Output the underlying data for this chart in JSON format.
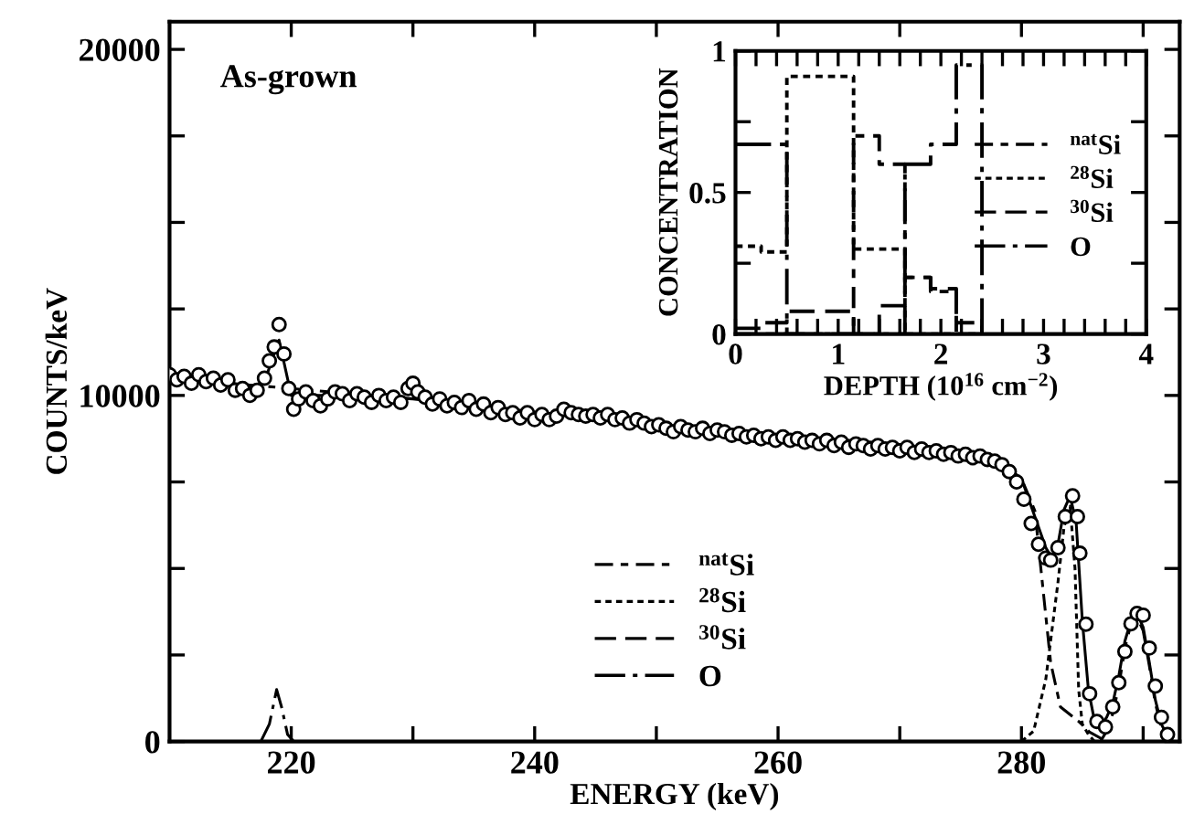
{
  "chart_data": [
    {
      "type": "line",
      "xlabel": "ENERGY (keV)",
      "ylabel": "COUNTS/keV",
      "annotations": [
        "As-grown"
      ],
      "xlim": [
        210,
        293
      ],
      "ylim": [
        0,
        20800
      ],
      "xticks": [
        220,
        {
          "value": 230,
          "label": null
        },
        240,
        {
          "value": 250,
          "label": null
        },
        260,
        {
          "value": 270,
          "label": null
        },
        280,
        {
          "value": 290,
          "label": null
        }
      ],
      "yticks": [
        0,
        {
          "value": 2500,
          "label": null
        },
        {
          "value": 5000,
          "label": null
        },
        {
          "value": 7500,
          "label": null
        },
        10000,
        {
          "value": 12500,
          "label": null
        },
        {
          "value": 15000,
          "label": null
        },
        {
          "value": 17500,
          "label": null
        },
        20000
      ],
      "grid": false,
      "legend": "bottom",
      "series": [
        {
          "type": "scatter",
          "color": "#000000",
          "marker": "circle",
          "x": [
            210,
            210.6,
            211.2,
            211.8,
            212.4,
            213,
            213.6,
            214.2,
            214.8,
            215.4,
            216,
            216.6,
            217.2,
            217.8,
            218.2,
            218.6,
            219,
            219.4,
            219.8,
            220.2,
            220.6,
            221.2,
            221.8,
            222.4,
            223,
            223.6,
            224.2,
            224.8,
            225.4,
            226,
            226.6,
            227.2,
            227.8,
            228.4,
            229,
            229.6,
            230,
            230.4,
            231,
            231.6,
            232.2,
            232.8,
            233.4,
            234,
            234.6,
            235.2,
            235.8,
            236.4,
            237,
            237.6,
            238.2,
            238.8,
            239.4,
            240,
            240.6,
            241.2,
            241.8,
            242.4,
            243,
            243.6,
            244.2,
            244.8,
            245.4,
            246,
            246.6,
            247.2,
            247.8,
            248.4,
            249,
            249.6,
            250.2,
            250.8,
            251.4,
            252,
            252.6,
            253.2,
            253.8,
            254.4,
            255,
            255.6,
            256.2,
            256.8,
            257.4,
            258,
            258.6,
            259.2,
            259.8,
            260.4,
            261,
            261.6,
            262.2,
            262.8,
            263.4,
            264,
            264.6,
            265.2,
            265.8,
            266.4,
            267,
            267.6,
            268.2,
            268.8,
            269.4,
            270,
            270.6,
            271.2,
            271.8,
            272.4,
            273,
            273.6,
            274.2,
            274.8,
            275.4,
            276,
            276.6,
            277.2,
            277.8,
            278.4,
            279,
            279.6,
            280.2,
            280.8,
            281.4,
            282,
            282.4,
            283,
            283.6,
            284.2,
            284.6,
            284.8,
            285.3,
            285.6,
            286.2,
            286.9,
            287.5,
            288,
            288.5,
            289,
            289.5,
            290,
            290.5,
            291,
            291.5,
            292
          ],
          "values": [
            10600,
            10450,
            10550,
            10350,
            10600,
            10400,
            10500,
            10300,
            10450,
            10150,
            10200,
            10000,
            10150,
            10500,
            11000,
            11400,
            12050,
            11200,
            10200,
            9600,
            9900,
            10100,
            9850,
            9700,
            9900,
            10100,
            10050,
            9850,
            10050,
            9950,
            9800,
            10000,
            9850,
            9950,
            9800,
            10200,
            10350,
            10100,
            9950,
            9750,
            9900,
            9700,
            9800,
            9650,
            9850,
            9600,
            9750,
            9500,
            9650,
            9450,
            9500,
            9350,
            9500,
            9300,
            9450,
            9300,
            9400,
            9600,
            9500,
            9450,
            9400,
            9450,
            9350,
            9450,
            9300,
            9350,
            9200,
            9300,
            9200,
            9100,
            9150,
            9050,
            8950,
            9100,
            9000,
            8950,
            9050,
            8900,
            9000,
            8950,
            8850,
            8900,
            8800,
            8850,
            8750,
            8800,
            8700,
            8800,
            8700,
            8750,
            8650,
            8700,
            8600,
            8700,
            8550,
            8650,
            8500,
            8600,
            8550,
            8450,
            8550,
            8450,
            8500,
            8400,
            8500,
            8350,
            8450,
            8350,
            8400,
            8300,
            8350,
            8250,
            8300,
            8200,
            8250,
            8150,
            8100,
            8000,
            7800,
            7500,
            7000,
            6300,
            5700,
            5300,
            5240,
            5600,
            6500,
            7100,
            6500,
            5440,
            3390,
            1380,
            580,
            420,
            1000,
            1700,
            2600,
            3400,
            3700,
            3650,
            2700,
            1600,
            700,
            200
          ]
        },
        {
          "type": "line",
          "color": "#000000",
          "line_style": "solid",
          "x": [
            210,
            217,
            218,
            219,
            220,
            225,
            230,
            240,
            250,
            260,
            270,
            276,
            278,
            280,
            281,
            282,
            282.5,
            283,
            283.5,
            284,
            284.5,
            285,
            285.5,
            286,
            286.5,
            287,
            287.5,
            288,
            288.5,
            289,
            289.5,
            290,
            290.5,
            291,
            291.5,
            292
          ],
          "values": [
            10500,
            10200,
            10600,
            11600,
            10000,
            10000,
            9900,
            9500,
            9150,
            8850,
            8580,
            8350,
            8100,
            7600,
            6600,
            5600,
            5300,
            5700,
            6700,
            7100,
            6300,
            3500,
            1500,
            600,
            450,
            700,
            1100,
            1900,
            2900,
            3500,
            3700,
            3300,
            2300,
            1200,
            500,
            150
          ]
        },
        {
          "type": "line",
          "name": "$^{nat}$Si",
          "color": "#000000",
          "line_style": "dashdot",
          "x": [
            210,
            230,
            250,
            270,
            278,
            280,
            281.1,
            282.4,
            283.2,
            284.7,
            285.6,
            287
          ],
          "values": [
            10500,
            9900,
            9150,
            8580,
            8100,
            7600,
            6670,
            2280,
            1000,
            580,
            270,
            0
          ]
        },
        {
          "type": "line",
          "name": "$^{28}$Si",
          "color": "#000000",
          "line_style": "dotted",
          "x": [
            280,
            281,
            282,
            282.5,
            283,
            283.5,
            284,
            284.4,
            284.7,
            285,
            285.5,
            286
          ],
          "values": [
            0,
            300,
            1800,
            3200,
            4600,
            6200,
            6800,
            5000,
            1500,
            500,
            200,
            0
          ]
        },
        {
          "type": "line",
          "name": "$^{30}$Si",
          "color": "#000000",
          "line_style": "dashed",
          "x": [
            286.5,
            287,
            287.5,
            288,
            288.5,
            289,
            289.5,
            290,
            290.5,
            291,
            291.5,
            292,
            292.5
          ],
          "values": [
            0,
            300,
            800,
            1600,
            2700,
            3400,
            3600,
            3200,
            2200,
            1100,
            400,
            100,
            0
          ]
        },
        {
          "type": "line",
          "name": "O",
          "color": "#000000",
          "line_style": "longdashdot",
          "x": [
            217.5,
            218.2,
            218.8,
            219.2,
            219.7,
            220.2
          ],
          "values": [
            0,
            500,
            1500,
            1000,
            200,
            0
          ]
        }
      ]
    },
    {
      "type": "step",
      "xlabel": "DEPTH (10$^{16}$ cm$^{−2}$)",
      "ylabel": "CONCENTRATION",
      "xlim": [
        0,
        4
      ],
      "ylim": [
        0,
        1
      ],
      "xticks": [
        0,
        {
          "value": 0.2,
          "label": null
        },
        {
          "value": 0.4,
          "label": null
        },
        {
          "value": 0.6,
          "label": null
        },
        {
          "value": 0.8,
          "label": null
        },
        1,
        {
          "value": 1.2,
          "label": null
        },
        {
          "value": 1.4,
          "label": null
        },
        {
          "value": 1.6,
          "label": null
        },
        {
          "value": 1.8,
          "label": null
        },
        2,
        {
          "value": 2.2,
          "label": null
        },
        {
          "value": 2.4,
          "label": null
        },
        {
          "value": 2.6,
          "label": null
        },
        {
          "value": 2.8,
          "label": null
        },
        3,
        {
          "value": 3.2,
          "label": null
        },
        {
          "value": 3.4,
          "label": null
        },
        {
          "value": 3.6,
          "label": null
        },
        {
          "value": 3.8,
          "label": null
        },
        4
      ],
      "yticks": [
        0,
        {
          "value": 0.25,
          "label": null
        },
        0.5,
        {
          "value": 0.75,
          "label": null
        },
        1
      ],
      "grid": false,
      "legend": "right",
      "series": [
        {
          "name": "$^{nat}$Si",
          "color": "#000000",
          "line_style": "dashdot",
          "x": [
            0,
            0.25,
            0.5,
            1.15,
            1.4,
            1.65,
            1.9,
            2.15,
            2.4
          ],
          "values": [
            0,
            0,
            0,
            0.7,
            0.6,
            0.2,
            0.15,
            0,
            0
          ]
        },
        {
          "name": "$^{28}$Si",
          "color": "#000000",
          "line_style": "dotted",
          "x": [
            0,
            0.25,
            0.5,
            1.15,
            1.4,
            1.65,
            1.9,
            2.15,
            2.4
          ],
          "values": [
            0.31,
            0.29,
            0.91,
            0.3,
            0.3,
            0,
            0,
            0,
            0
          ]
        },
        {
          "name": "$^{30}$Si",
          "color": "#000000",
          "line_style": "dashed",
          "x": [
            0,
            0.25,
            0.5,
            1.15,
            1.4,
            1.65,
            1.9,
            2.15,
            2.4
          ],
          "values": [
            0.02,
            0.04,
            0.08,
            0,
            0.1,
            0.2,
            0.16,
            0.04,
            0
          ]
        },
        {
          "name": "O",
          "color": "#000000",
          "line_style": "longdashdot",
          "x": [
            0,
            0.25,
            0.5,
            1.15,
            1.4,
            1.65,
            1.9,
            2.15,
            2.4
          ],
          "values": [
            0.67,
            0.67,
            0,
            0,
            0,
            0.6,
            0.67,
            0.95,
            0
          ]
        }
      ]
    }
  ]
}
